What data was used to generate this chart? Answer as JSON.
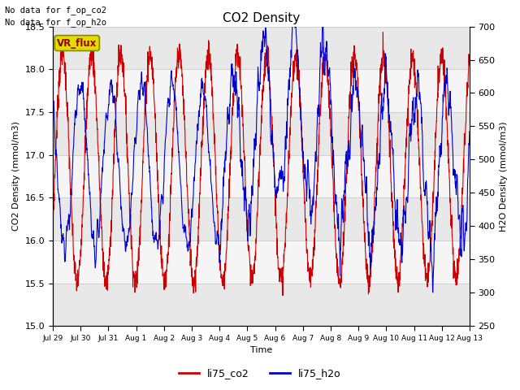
{
  "title": "CO2 Density",
  "xlabel": "Time",
  "ylabel_left": "CO2 Density (mmol/m3)",
  "ylabel_right": "H2O Density (mmol/m3)",
  "ylim_left": [
    15.0,
    18.5
  ],
  "ylim_right": [
    250,
    700
  ],
  "text_no_data": [
    "No data for f_op_co2",
    "No data for f_op_h2o"
  ],
  "vr_flux_label": "VR_flux",
  "legend_labels": [
    "li75_co2",
    "li75_h2o"
  ],
  "co2_color": "#cc0000",
  "h2o_color": "#0000cc",
  "bg_band_color1": "#e0e0e0",
  "bg_band_color2": "#f0f0f0",
  "grid_color": "#d0d0d0",
  "vr_flux_box_color": "#dddd00",
  "vr_flux_text_color": "#990000",
  "x_tick_labels": [
    "Jul 29",
    "Jul 30",
    "Jul 31",
    "Aug 1",
    "Aug 2",
    "Aug 3",
    "Aug 4",
    "Aug 5",
    "Aug 6",
    "Aug 7",
    "Aug 8",
    "Aug 9",
    "Aug 10",
    "Aug 11",
    "Aug 12",
    "Aug 13"
  ],
  "n_points": 2000,
  "seed": 7
}
